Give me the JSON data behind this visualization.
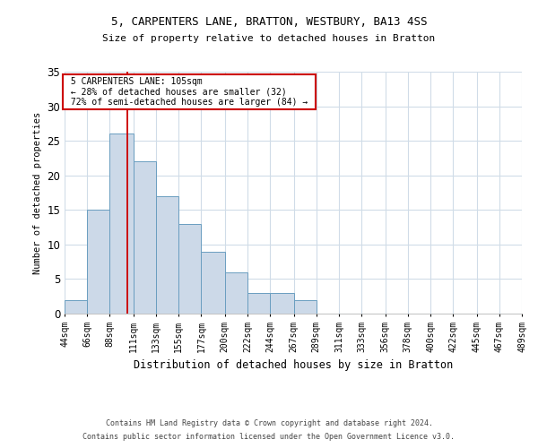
{
  "title1": "5, CARPENTERS LANE, BRATTON, WESTBURY, BA13 4SS",
  "title2": "Size of property relative to detached houses in Bratton",
  "xlabel": "Distribution of detached houses by size in Bratton",
  "ylabel": "Number of detached properties",
  "footnote1": "Contains HM Land Registry data © Crown copyright and database right 2024.",
  "footnote2": "Contains public sector information licensed under the Open Government Licence v3.0.",
  "annotation_line1": "5 CARPENTERS LANE: 105sqm",
  "annotation_line2": "← 28% of detached houses are smaller (32)",
  "annotation_line3": "72% of semi-detached houses are larger (84) →",
  "bar_edges": [
    44,
    66,
    88,
    111,
    133,
    155,
    177,
    200,
    222,
    244,
    267,
    289,
    311,
    333,
    356,
    378,
    400,
    422,
    445,
    467,
    489
  ],
  "bar_heights": [
    2,
    15,
    26,
    22,
    17,
    13,
    9,
    6,
    3,
    3,
    2,
    0,
    0,
    0,
    0,
    0,
    0,
    0,
    0,
    0
  ],
  "property_size": 105,
  "bar_color": "#ccd9e8",
  "bar_edge_color": "#6a9ec0",
  "redline_color": "#cc0000",
  "annotation_box_color": "#cc0000",
  "grid_color": "#d0dce8",
  "background_color": "#ffffff",
  "ylim": [
    0,
    35
  ],
  "yticks": [
    0,
    5,
    10,
    15,
    20,
    25,
    30,
    35
  ]
}
